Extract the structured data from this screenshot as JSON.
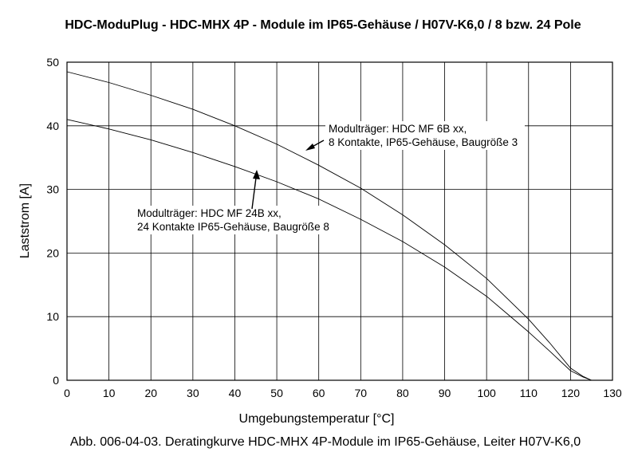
{
  "chart_data": {
    "type": "line",
    "title": "HDC-ModuPlug - HDC-MHX 4P - Module im IP65-Gehäuse / H07V-K6,0 / 8 bzw. 24 Pole",
    "xlabel": "Umgebungstemperatur [°C]",
    "ylabel": "Laststrom [A]",
    "caption": "Abb. 006-04-03. Deratingkurve HDC-MHX 4P-Module im IP65-Gehäuse, Leiter H07V-K6,0",
    "xlim": [
      0,
      130
    ],
    "ylim": [
      0,
      50
    ],
    "xticks": [
      "0",
      "10",
      "20",
      "30",
      "40",
      "50",
      "60",
      "70",
      "80",
      "90",
      "100",
      "110",
      "120",
      "130"
    ],
    "yticks": [
      "0",
      "10",
      "20",
      "30",
      "40",
      "50"
    ],
    "grid": true,
    "series": [
      {
        "x": [
          0,
          10,
          20,
          30,
          40,
          50,
          60,
          70,
          80,
          90,
          100,
          110,
          115,
          120,
          123,
          125
        ],
        "values": [
          48.5,
          46.8,
          44.8,
          42.6,
          40.0,
          37.1,
          33.8,
          30.2,
          26.0,
          21.3,
          16.0,
          9.6,
          5.9,
          1.9,
          0.6,
          0
        ],
        "annotation": [
          "Modulträger: HDC MF 6B xx,",
          "8 Kontakte, IP65-Gehäuse, Baugröße 3"
        ]
      },
      {
        "x": [
          0,
          10,
          20,
          30,
          40,
          50,
          60,
          70,
          80,
          90,
          100,
          110,
          115,
          120,
          123,
          125
        ],
        "values": [
          41.0,
          39.5,
          37.8,
          35.8,
          33.6,
          31.2,
          28.5,
          25.3,
          21.8,
          17.8,
          13.2,
          7.6,
          4.6,
          1.5,
          0.5,
          0
        ],
        "annotation": [
          "Modulträger: HDC MF 24B xx,",
          "24 Kontakte IP65-Gehäuse, Baugröße 8"
        ]
      }
    ]
  }
}
